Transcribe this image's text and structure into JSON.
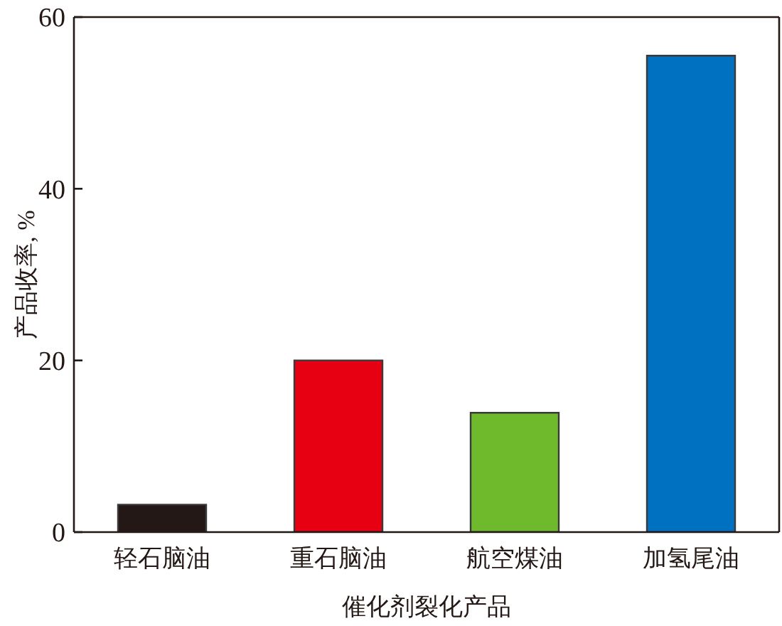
{
  "chart_data": {
    "type": "bar",
    "xlabel": "催化剂裂化产品",
    "ylabel": "产品收率, %",
    "categories": [
      "轻石脑油",
      "重石脑油",
      "航空煤油",
      "加氢尾油"
    ],
    "values": [
      3.2,
      20.0,
      13.9,
      55.5
    ],
    "colors": [
      "#231815",
      "#e60012",
      "#6fb92c",
      "#0071c1"
    ],
    "ylim": [
      0,
      60
    ],
    "yticks": [
      0,
      20,
      40,
      60
    ]
  }
}
